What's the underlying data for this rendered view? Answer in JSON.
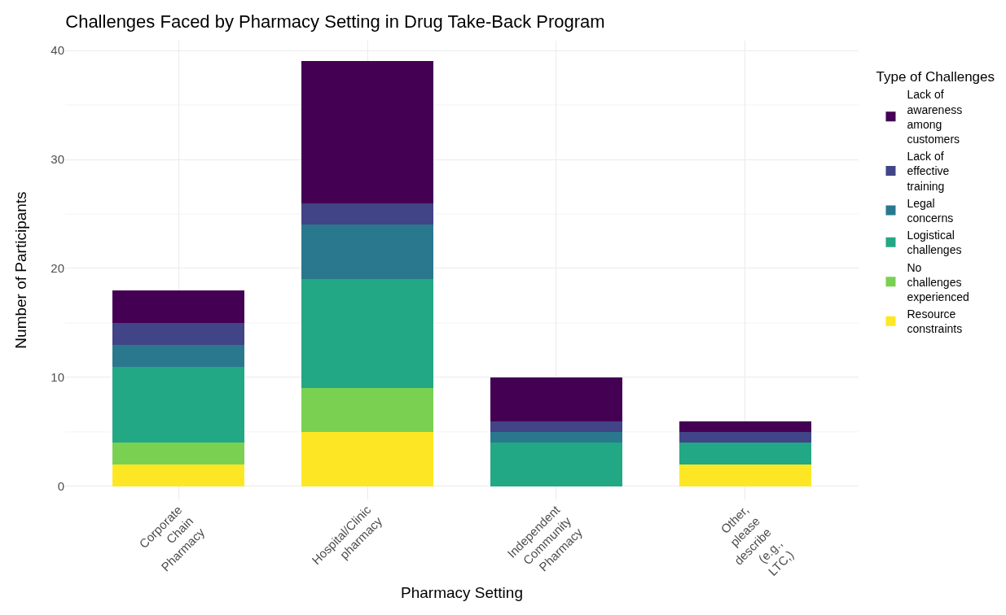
{
  "chart_data": {
    "type": "bar",
    "title": "Challenges Faced by Pharmacy Setting in Drug Take-Back Program",
    "xlabel": "Pharmacy Setting",
    "ylabel": "Number of Participants",
    "legend_title": "Type of Challenges",
    "categories": [
      "Corporate Chain Pharmacy",
      "Hospital/Clinic pharmacy",
      "Independent Community Pharmacy",
      "Other, please describe (e.g., LTC,)"
    ],
    "stacked": true,
    "series": [
      {
        "name": "Resource constraints",
        "color": "#fde725",
        "values": [
          2,
          5,
          0,
          2
        ]
      },
      {
        "name": "No challenges experienced",
        "color": "#7ad151",
        "values": [
          2,
          4,
          0,
          0
        ]
      },
      {
        "name": "Logistical challenges",
        "color": "#22a884",
        "values": [
          7,
          10,
          4,
          2
        ]
      },
      {
        "name": "Legal concerns",
        "color": "#2a788e",
        "values": [
          2,
          5,
          1,
          0
        ]
      },
      {
        "name": "Lack of effective training",
        "color": "#414487",
        "values": [
          2,
          2,
          1,
          1
        ]
      },
      {
        "name": "Lack of awareness among customers",
        "color": "#440154",
        "values": [
          3,
          13,
          4,
          1
        ]
      }
    ],
    "ylim": [
      -1.2,
      40.9
    ],
    "yticks": [
      0,
      10,
      20,
      30,
      40
    ],
    "grid": true,
    "legend": "right"
  }
}
